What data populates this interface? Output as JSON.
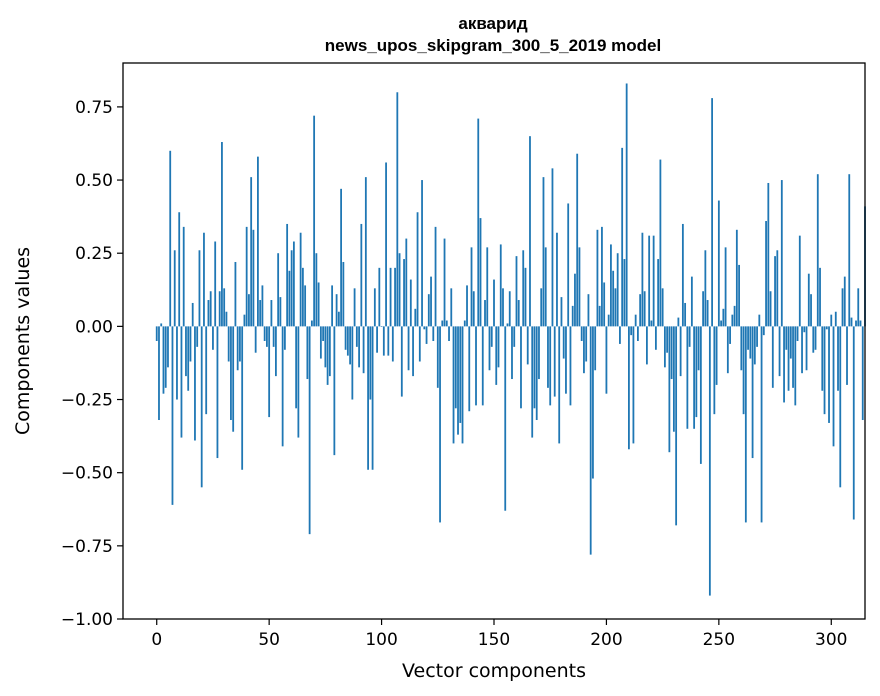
{
  "chart_data": {
    "type": "bar",
    "title": "акварид",
    "subtitle": "news_upos_skipgram_300_5_2019 model",
    "xlabel": "Vector components",
    "ylabel": "Components values",
    "xlim": [
      -15,
      315
    ],
    "ylim": [
      -1.0,
      0.9
    ],
    "xticks": [
      0,
      50,
      100,
      150,
      200,
      250,
      300
    ],
    "yticks": [
      -1.0,
      -0.75,
      -0.5,
      -0.25,
      0.0,
      0.25,
      0.5,
      0.75
    ],
    "xtick_labels": [
      "0",
      "50",
      "100",
      "150",
      "200",
      "250",
      "300"
    ],
    "ytick_labels": [
      "−1.00",
      "−0.75",
      "−0.50",
      "−0.25",
      "0.00",
      "0.25",
      "0.50",
      "0.75"
    ],
    "bar_color": "#1f77b4",
    "values": [
      -0.05,
      -0.32,
      0.01,
      -0.23,
      -0.21,
      -0.14,
      0.6,
      -0.61,
      0.26,
      -0.25,
      0.39,
      -0.38,
      0.34,
      -0.17,
      -0.22,
      -0.12,
      0.08,
      -0.39,
      -0.07,
      0.26,
      -0.55,
      0.32,
      -0.3,
      0.09,
      0.12,
      -0.08,
      0.29,
      -0.45,
      0.12,
      0.63,
      0.13,
      0.05,
      -0.12,
      -0.32,
      -0.36,
      0.22,
      -0.15,
      -0.12,
      -0.49,
      0.04,
      0.34,
      0.11,
      0.51,
      0.33,
      -0.09,
      0.58,
      0.09,
      0.14,
      -0.05,
      -0.07,
      -0.31,
      0.09,
      -0.07,
      -0.17,
      0.25,
      0.1,
      -0.41,
      -0.08,
      0.35,
      0.19,
      0.26,
      0.29,
      -0.28,
      -0.38,
      0.32,
      0.2,
      0.14,
      -0.18,
      -0.71,
      0.02,
      0.72,
      0.25,
      0.15,
      -0.11,
      -0.05,
      -0.14,
      -0.2,
      -0.17,
      0.14,
      -0.44,
      0.11,
      0.05,
      0.47,
      0.22,
      -0.08,
      -0.1,
      -0.13,
      -0.25,
      0.13,
      -0.07,
      -0.14,
      0.35,
      -0.16,
      0.51,
      -0.49,
      -0.25,
      -0.49,
      0.13,
      -0.09,
      0.2,
      0.0,
      -0.1,
      0.56,
      -0.1,
      0.2,
      -0.12,
      0.2,
      0.8,
      0.25,
      -0.24,
      0.23,
      0.3,
      -0.15,
      0.16,
      -0.17,
      0.06,
      0.39,
      -0.12,
      0.5,
      -0.01,
      -0.06,
      0.11,
      0.17,
      -0.05,
      0.34,
      -0.21,
      -0.67,
      0.02,
      0.3,
      0.02,
      -0.05,
      0.13,
      -0.4,
      -0.28,
      -0.37,
      -0.33,
      -0.4,
      0.02,
      0.14,
      -0.29,
      0.27,
      0.12,
      -0.27,
      0.71,
      0.37,
      -0.27,
      0.09,
      0.27,
      -0.15,
      -0.07,
      0.16,
      -0.2,
      -0.14,
      0.28,
      0.13,
      -0.63,
      0.01,
      0.12,
      -0.18,
      -0.07,
      0.24,
      0.09,
      -0.28,
      0.26,
      0.2,
      -0.13,
      0.65,
      -0.38,
      -0.28,
      -0.32,
      -0.18,
      0.13,
      0.51,
      0.27,
      -0.21,
      -0.27,
      0.54,
      -0.24,
      0.32,
      -0.4,
      0.1,
      -0.11,
      -0.23,
      0.42,
      -0.27,
      0.07,
      0.18,
      0.59,
      0.27,
      -0.05,
      -0.16,
      -0.12,
      0.11,
      -0.78,
      -0.52,
      -0.15,
      0.33,
      0.07,
      0.34,
      0.15,
      -0.23,
      0.04,
      0.28,
      0.19,
      0.13,
      0.25,
      -0.06,
      0.61,
      0.23,
      0.83,
      -0.42,
      -0.03,
      -0.4,
      0.04,
      -0.05,
      0.11,
      0.32,
      0.12,
      -0.13,
      0.31,
      0.02,
      0.31,
      -0.08,
      0.23,
      0.57,
      0.13,
      -0.14,
      -0.09,
      -0.43,
      -0.18,
      -0.36,
      -0.68,
      0.03,
      -0.17,
      0.35,
      0.08,
      -0.35,
      -0.07,
      0.17,
      -0.35,
      -0.31,
      -0.15,
      -0.47,
      0.12,
      0.26,
      0.09,
      -0.92,
      0.78,
      -0.3,
      -0.2,
      0.43,
      0.02,
      0.06,
      0.27,
      -0.16,
      -0.06,
      0.04,
      0.07,
      0.33,
      0.21,
      -0.15,
      -0.3,
      -0.67,
      -0.08,
      -0.11,
      -0.45,
      -0.13,
      -0.07,
      0.04,
      -0.67,
      -0.03,
      0.36,
      0.49,
      0.12,
      -0.21,
      0.24,
      0.26,
      -0.17,
      0.5,
      -0.26,
      -0.08,
      -0.22,
      -0.11,
      -0.21,
      -0.27,
      -0.05,
      0.31,
      -0.16,
      -0.02,
      -0.15,
      0.18,
      0.11,
      -0.09,
      -0.08,
      0.52,
      0.2,
      -0.22,
      -0.3,
      -0.01,
      -0.33,
      0.04,
      -0.41,
      0.05,
      -0.22,
      -0.55,
      0.13,
      0.17,
      -0.2,
      0.52,
      0.03,
      -0.66,
      0.02,
      0.13,
      0.02,
      -0.32,
      0.41
    ]
  }
}
